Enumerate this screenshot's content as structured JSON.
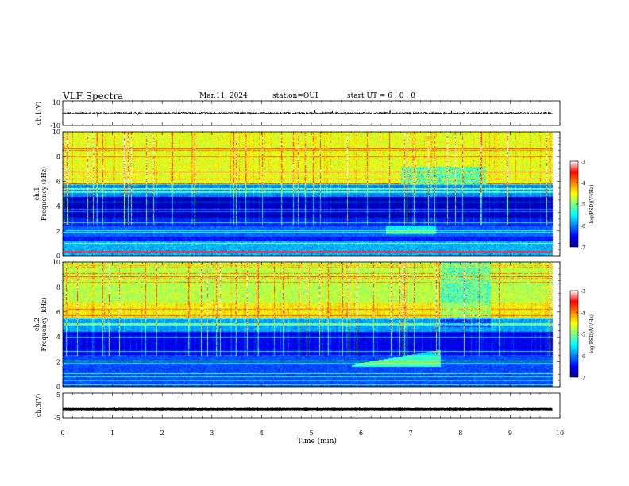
{
  "header": {
    "title": "VLF Spectra",
    "date": "Mar.11, 2024",
    "station": "station=OUI",
    "start": "start  UT =  6 : 0  : 0"
  },
  "chart_data": {
    "type": "heatmap",
    "xlabel": "Time  (min)",
    "x_ticks": [
      "0",
      "1",
      "2",
      "3",
      "4",
      "5",
      "6",
      "7",
      "8",
      "9",
      "10"
    ],
    "xlim": [
      0,
      10
    ],
    "data_end_min": 9.85,
    "panels": [
      {
        "id": "ch1_wave",
        "kind": "waveform",
        "ylabel": "ch.1(V)",
        "ylim": [
          -10,
          10
        ],
        "y_tick_labels": [
          "10",
          "-10"
        ],
        "baseline": 0,
        "noise_amplitude": 1.5
      },
      {
        "id": "ch1_spec",
        "kind": "spectrogram",
        "ylabel_channel": "ch.1",
        "ylabel": "Frequency  (kHz)",
        "ylim": [
          0,
          10
        ],
        "y_tick_labels": [
          "0",
          "2",
          "4",
          "6",
          "8",
          "10"
        ],
        "colorbar": {
          "label": "log(PSD)(V²/Hz)",
          "ticks": [
            "-3",
            "-4",
            "-5",
            "-6",
            "-7"
          ],
          "range": [
            -7,
            -3
          ]
        },
        "features": {
          "upper_band_kHz": [
            5.8,
            10
          ],
          "upper_band_level": -4.6,
          "quiet_band_kHz": [
            3.0,
            4.8
          ],
          "hiss_band_kHz": [
            1.6,
            2.4
          ],
          "strong_low_line_kHz": 0.35,
          "weak_upper_region_min": [
            6.8,
            8.5
          ]
        }
      },
      {
        "id": "ch2_spec",
        "kind": "spectrogram",
        "ylabel_channel": "ch.2",
        "ylabel": "Frequency  (kHz)",
        "ylim": [
          0,
          10
        ],
        "y_tick_labels": [
          "0",
          "2",
          "4",
          "6",
          "8",
          "10"
        ],
        "colorbar": {
          "label": "log(PSD)(V²/Hz)",
          "ticks": [
            "-3",
            "-4",
            "-5",
            "-6",
            "-7"
          ],
          "range": [
            -7,
            -3
          ]
        },
        "features": {
          "bright_band_kHz": [
            5.6,
            6.8
          ],
          "bright_band_level": -4.5,
          "upper_band_level": -4.8,
          "hiss_rise_min": [
            5.8,
            7.6
          ],
          "hiss_rise_kHz": [
            1.8,
            3.0
          ],
          "gap_bright_min": [
            7.6,
            8.6
          ]
        }
      },
      {
        "id": "ch3_wave",
        "kind": "waveform",
        "ylabel": "ch.3(V)",
        "ylim": [
          -5,
          5
        ],
        "y_tick_labels": [
          "5",
          "-5"
        ],
        "baseline": -1.5,
        "noise_amplitude": 0.2
      }
    ],
    "colors": {
      "colormap": [
        "#00008f",
        "#0000ff",
        "#0080ff",
        "#00ffff",
        "#80ff80",
        "#ffff00",
        "#ff8000",
        "#ff0000",
        "#ffffff"
      ],
      "waveform": "#000000"
    }
  }
}
